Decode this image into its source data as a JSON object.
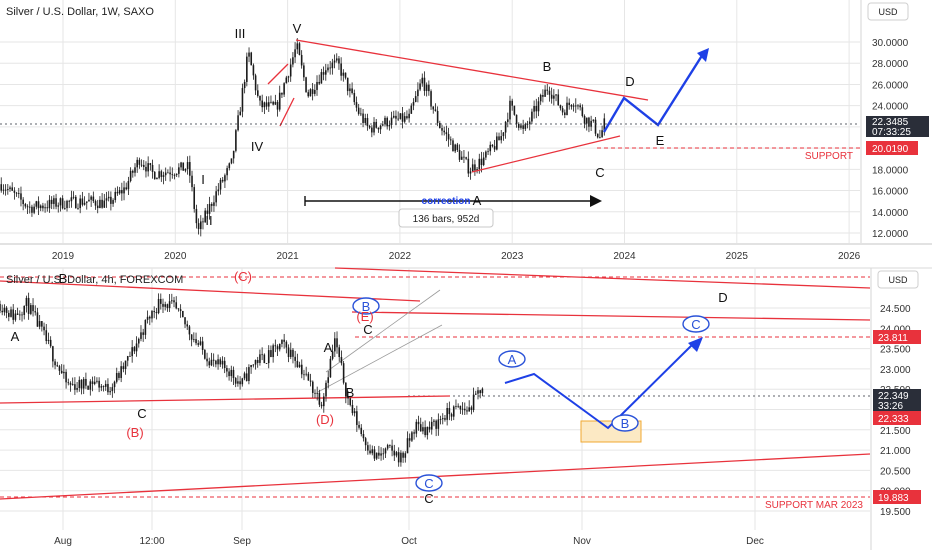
{
  "colors": {
    "candle": "#1a1a1a",
    "trend_red": "#e8323c",
    "wave_blue": "#1e40e6",
    "label_blue": "#2a52d8",
    "support_red": "#e8323c",
    "price_tag": "#2a2e39",
    "grid": "#e6e6e6",
    "target_box": "#f5b94a"
  },
  "chart_data": [
    {
      "type": "candlestick",
      "title": "Silver / U.S. Dollar, 1W, SAXO",
      "currency": "USD",
      "y_ticks": [
        "30.0000",
        "28.0000",
        "26.0000",
        "24.0000",
        "22.0000",
        "20.0000",
        "18.0000",
        "16.0000",
        "14.0000",
        "12.0000"
      ],
      "ylim": [
        11,
        32
      ],
      "x_ticks": [
        "2019",
        "2020",
        "2021",
        "2022",
        "2023",
        "2024",
        "2025",
        "2026"
      ],
      "last_price": "22.3485",
      "countdown": "07:33:25",
      "support_price": "20.0190",
      "support_label": "SUPPORT",
      "series_close": [
        {
          "x": 2018.45,
          "y": 16.6
        },
        {
          "x": 2018.7,
          "y": 14.4
        },
        {
          "x": 2018.95,
          "y": 14.8
        },
        {
          "x": 2019.2,
          "y": 15.0
        },
        {
          "x": 2019.4,
          "y": 14.8
        },
        {
          "x": 2019.55,
          "y": 16.2
        },
        {
          "x": 2019.68,
          "y": 19.0
        },
        {
          "x": 2019.8,
          "y": 17.6
        },
        {
          "x": 2019.98,
          "y": 17.9
        },
        {
          "x": 2020.12,
          "y": 18.2
        },
        {
          "x": 2020.2,
          "y": 12.0
        },
        {
          "x": 2020.35,
          "y": 15.5
        },
        {
          "x": 2020.5,
          "y": 18.5
        },
        {
          "x": 2020.58,
          "y": 24.0
        },
        {
          "x": 2020.65,
          "y": 29.0
        },
        {
          "x": 2020.75,
          "y": 24.0
        },
        {
          "x": 2020.9,
          "y": 23.8
        },
        {
          "x": 2020.98,
          "y": 26.4
        },
        {
          "x": 2021.08,
          "y": 29.6
        },
        {
          "x": 2021.18,
          "y": 25.0
        },
        {
          "x": 2021.35,
          "y": 27.8
        },
        {
          "x": 2021.45,
          "y": 27.9
        },
        {
          "x": 2021.62,
          "y": 23.6
        },
        {
          "x": 2021.72,
          "y": 21.8
        },
        {
          "x": 2021.88,
          "y": 22.5
        },
        {
          "x": 2022.08,
          "y": 22.8
        },
        {
          "x": 2022.2,
          "y": 26.5
        },
        {
          "x": 2022.35,
          "y": 22.2
        },
        {
          "x": 2022.5,
          "y": 19.8
        },
        {
          "x": 2022.62,
          "y": 18.0
        },
        {
          "x": 2022.75,
          "y": 19.0
        },
        {
          "x": 2022.9,
          "y": 21.0
        },
        {
          "x": 2022.98,
          "y": 24.0
        },
        {
          "x": 2023.1,
          "y": 21.5
        },
        {
          "x": 2023.2,
          "y": 23.5
        },
        {
          "x": 2023.32,
          "y": 25.8
        },
        {
          "x": 2023.45,
          "y": 23.5
        },
        {
          "x": 2023.55,
          "y": 24.6
        },
        {
          "x": 2023.65,
          "y": 22.8
        },
        {
          "x": 2023.72,
          "y": 22.2
        },
        {
          "x": 2023.78,
          "y": 21.0
        },
        {
          "x": 2023.82,
          "y": 22.3
        }
      ],
      "annotations": [
        "III",
        "V",
        "IV",
        "I",
        "II",
        "A",
        "B",
        "C",
        "D",
        "E"
      ],
      "range_label": "correction",
      "range_stats": "136 bars, 952d"
    },
    {
      "type": "candlestick",
      "title": "Silver / U.S. Dollar, 4h, FOREXCOM",
      "currency": "USD",
      "y_ticks": [
        "24.500",
        "24.000",
        "23.500",
        "23.000",
        "22.500",
        "22.000",
        "21.500",
        "21.000",
        "20.500",
        "20.000",
        "19.500"
      ],
      "ylim": [
        19.2,
        25.2
      ],
      "x_ticks": [
        "Aug",
        "12:00",
        "Sep",
        "Oct",
        "Nov",
        "Dec"
      ],
      "last_price": "22.349",
      "countdown": "33:26",
      "level_price": "22.333",
      "resistance_price": "23.811",
      "support_price": "19.883",
      "support_label": "SUPPORT MAR 2023",
      "series_close": [
        {
          "x": 0.0,
          "y": 24.6
        },
        {
          "x": 0.04,
          "y": 24.3
        },
        {
          "x": 0.08,
          "y": 24.6
        },
        {
          "x": 0.12,
          "y": 24.0
        },
        {
          "x": 0.16,
          "y": 23.3
        },
        {
          "x": 0.2,
          "y": 22.6
        },
        {
          "x": 0.24,
          "y": 22.6
        },
        {
          "x": 0.28,
          "y": 22.7
        },
        {
          "x": 0.32,
          "y": 22.5
        },
        {
          "x": 0.36,
          "y": 22.9
        },
        {
          "x": 0.4,
          "y": 23.5
        },
        {
          "x": 0.44,
          "y": 24.2
        },
        {
          "x": 0.48,
          "y": 24.7
        },
        {
          "x": 0.52,
          "y": 24.5
        },
        {
          "x": 0.56,
          "y": 24.0
        },
        {
          "x": 0.6,
          "y": 23.5
        },
        {
          "x": 0.64,
          "y": 23.1
        },
        {
          "x": 0.68,
          "y": 23.0
        },
        {
          "x": 0.72,
          "y": 22.6
        },
        {
          "x": 0.76,
          "y": 23.2
        },
        {
          "x": 0.8,
          "y": 23.3
        },
        {
          "x": 0.84,
          "y": 23.6
        },
        {
          "x": 0.88,
          "y": 23.3
        },
        {
          "x": 0.92,
          "y": 22.7
        },
        {
          "x": 0.96,
          "y": 22.2
        },
        {
          "x": 1.0,
          "y": 23.7
        },
        {
          "x": 1.04,
          "y": 22.2
        },
        {
          "x": 1.08,
          "y": 21.4
        },
        {
          "x": 1.12,
          "y": 20.8
        },
        {
          "x": 1.16,
          "y": 21.0
        },
        {
          "x": 1.2,
          "y": 20.8
        },
        {
          "x": 1.24,
          "y": 21.6
        },
        {
          "x": 1.28,
          "y": 21.5
        },
        {
          "x": 1.32,
          "y": 21.8
        },
        {
          "x": 1.36,
          "y": 22.0
        },
        {
          "x": 1.4,
          "y": 22.0
        },
        {
          "x": 1.44,
          "y": 22.6
        }
      ],
      "annotations": [
        "A",
        "B",
        "C",
        "(B)",
        "(C)",
        "(D)",
        "(E)",
        "B",
        "C",
        "A",
        "B",
        "C",
        "A",
        "B",
        "C",
        "D"
      ]
    }
  ]
}
